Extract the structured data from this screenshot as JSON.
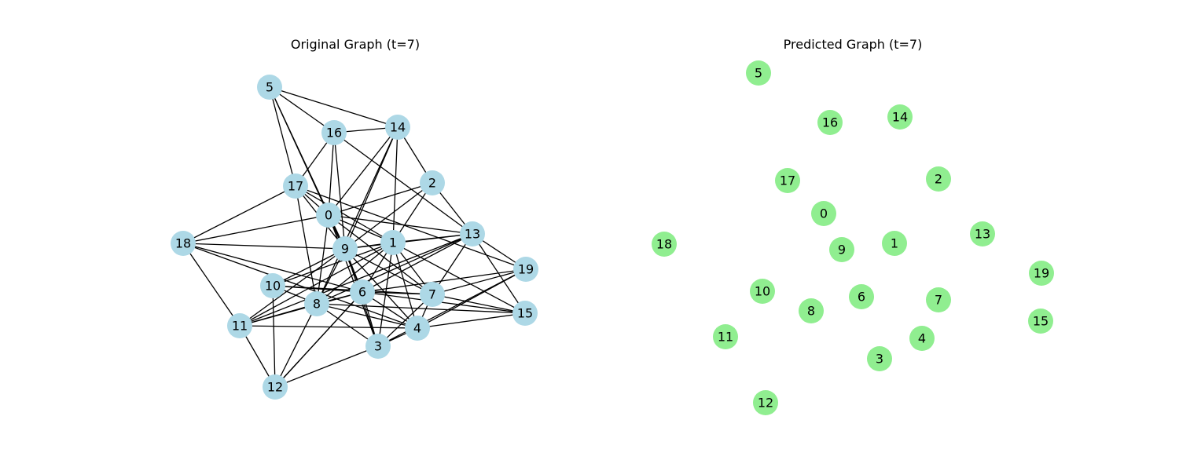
{
  "panels": [
    {
      "title": "Original Graph (t=7)",
      "node_color": "#add8e6",
      "nodes": [
        "0",
        "1",
        "2",
        "3",
        "4",
        "5",
        "6",
        "7",
        "8",
        "9",
        "10",
        "11",
        "12",
        "13",
        "14",
        "15",
        "16",
        "17",
        "18",
        "19"
      ],
      "edges": [
        [
          "5",
          "16"
        ],
        [
          "5",
          "14"
        ],
        [
          "5",
          "17"
        ],
        [
          "5",
          "0"
        ],
        [
          "5",
          "9"
        ],
        [
          "16",
          "14"
        ],
        [
          "16",
          "17"
        ],
        [
          "16",
          "0"
        ],
        [
          "16",
          "9"
        ],
        [
          "16",
          "13"
        ],
        [
          "14",
          "0"
        ],
        [
          "14",
          "9"
        ],
        [
          "14",
          "2"
        ],
        [
          "14",
          "1"
        ],
        [
          "14",
          "8"
        ],
        [
          "17",
          "18"
        ],
        [
          "17",
          "0"
        ],
        [
          "17",
          "9"
        ],
        [
          "17",
          "8"
        ],
        [
          "17",
          "1"
        ],
        [
          "17",
          "19"
        ],
        [
          "2",
          "0"
        ],
        [
          "2",
          "9"
        ],
        [
          "2",
          "13"
        ],
        [
          "2",
          "1"
        ],
        [
          "0",
          "18"
        ],
        [
          "0",
          "9"
        ],
        [
          "0",
          "1"
        ],
        [
          "0",
          "8"
        ],
        [
          "0",
          "6"
        ],
        [
          "0",
          "3"
        ],
        [
          "0",
          "7"
        ],
        [
          "0",
          "13"
        ],
        [
          "18",
          "9"
        ],
        [
          "18",
          "11"
        ],
        [
          "18",
          "6"
        ],
        [
          "18",
          "4"
        ],
        [
          "9",
          "1"
        ],
        [
          "9",
          "10"
        ],
        [
          "9",
          "8"
        ],
        [
          "9",
          "6"
        ],
        [
          "9",
          "7"
        ],
        [
          "9",
          "4"
        ],
        [
          "9",
          "3"
        ],
        [
          "9",
          "11"
        ],
        [
          "9",
          "13"
        ],
        [
          "1",
          "13"
        ],
        [
          "1",
          "10"
        ],
        [
          "1",
          "8"
        ],
        [
          "1",
          "6"
        ],
        [
          "1",
          "7"
        ],
        [
          "1",
          "4"
        ],
        [
          "1",
          "3"
        ],
        [
          "1",
          "15"
        ],
        [
          "1",
          "11"
        ],
        [
          "13",
          "19"
        ],
        [
          "13",
          "15"
        ],
        [
          "13",
          "8"
        ],
        [
          "13",
          "6"
        ],
        [
          "13",
          "7"
        ],
        [
          "13",
          "11"
        ],
        [
          "19",
          "7"
        ],
        [
          "19",
          "4"
        ],
        [
          "19",
          "3"
        ],
        [
          "19",
          "6"
        ],
        [
          "10",
          "8"
        ],
        [
          "10",
          "6"
        ],
        [
          "10",
          "12"
        ],
        [
          "10",
          "7"
        ],
        [
          "8",
          "6"
        ],
        [
          "8",
          "11"
        ],
        [
          "8",
          "12"
        ],
        [
          "8",
          "3"
        ],
        [
          "8",
          "15"
        ],
        [
          "8",
          "4"
        ],
        [
          "6",
          "7"
        ],
        [
          "6",
          "4"
        ],
        [
          "6",
          "3"
        ],
        [
          "6",
          "15"
        ],
        [
          "6",
          "11"
        ],
        [
          "6",
          "12"
        ],
        [
          "7",
          "4"
        ],
        [
          "7",
          "3"
        ],
        [
          "7",
          "15"
        ],
        [
          "4",
          "11"
        ],
        [
          "4",
          "15"
        ],
        [
          "4",
          "3"
        ],
        [
          "3",
          "12"
        ],
        [
          "11",
          "12"
        ],
        [
          "12",
          "6"
        ]
      ]
    },
    {
      "title": "Predicted Graph (t=7)",
      "node_color": "#90ee90",
      "nodes": [
        "0",
        "1",
        "2",
        "3",
        "4",
        "5",
        "6",
        "7",
        "8",
        "9",
        "10",
        "11",
        "12",
        "13",
        "14",
        "15",
        "16",
        "17",
        "18",
        "19"
      ],
      "edges": []
    }
  ]
}
